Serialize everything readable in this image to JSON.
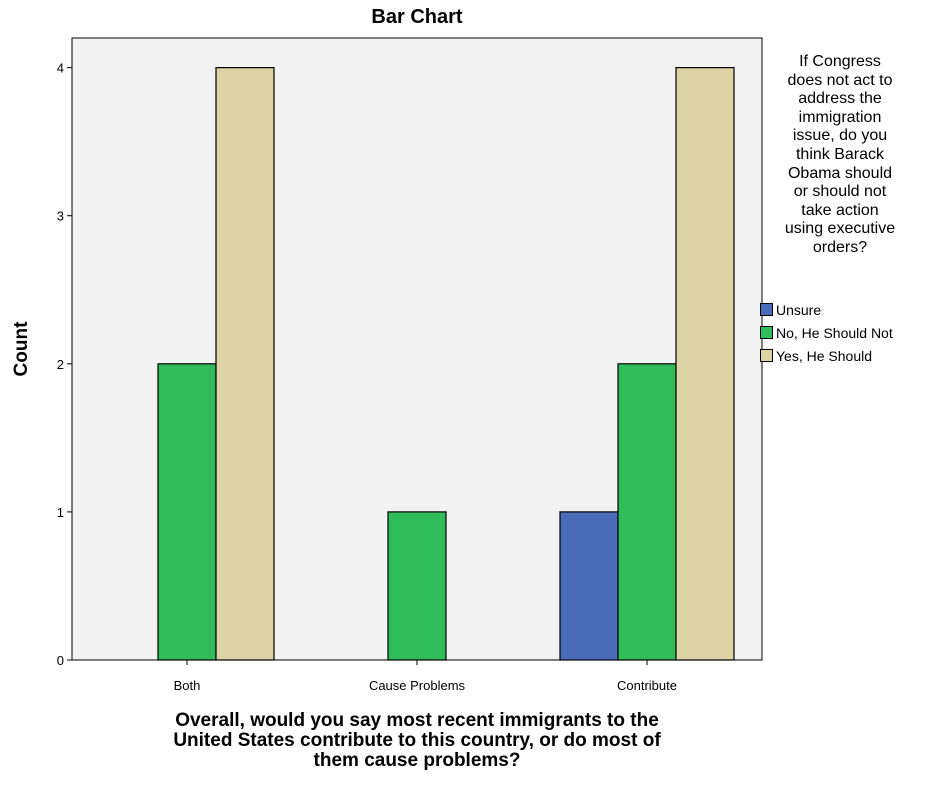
{
  "chart_data": {
    "type": "bar",
    "title": "Bar Chart",
    "xlabel": "Overall, would you say most recent immigrants to the\nUnited States contribute to this country, or do most of\nthem cause problems?",
    "ylabel": "Count",
    "categories": [
      "Both",
      "Cause Problems",
      "Contribute"
    ],
    "ylim": [
      0,
      4.2
    ],
    "yticks": [
      0,
      1,
      2,
      3,
      4
    ],
    "legend_title": "If Congress\ndoes not act to\naddress the\nimmigration\nissue, do you\nthink Barack\nObama should\nor should not\ntake action\nusing executive\norders?",
    "legend_position": "right",
    "series": [
      {
        "name": "Unsure",
        "color": "#4a6cb8",
        "values": [
          0,
          0,
          1
        ]
      },
      {
        "name": "No, He Should Not",
        "color": "#30bc58",
        "values": [
          2,
          1,
          2
        ]
      },
      {
        "name": "Yes, He Should",
        "color": "#dcd4a4",
        "values": [
          4,
          0,
          4
        ]
      }
    ],
    "plot_background": "#f2f2f2",
    "grid": false
  }
}
